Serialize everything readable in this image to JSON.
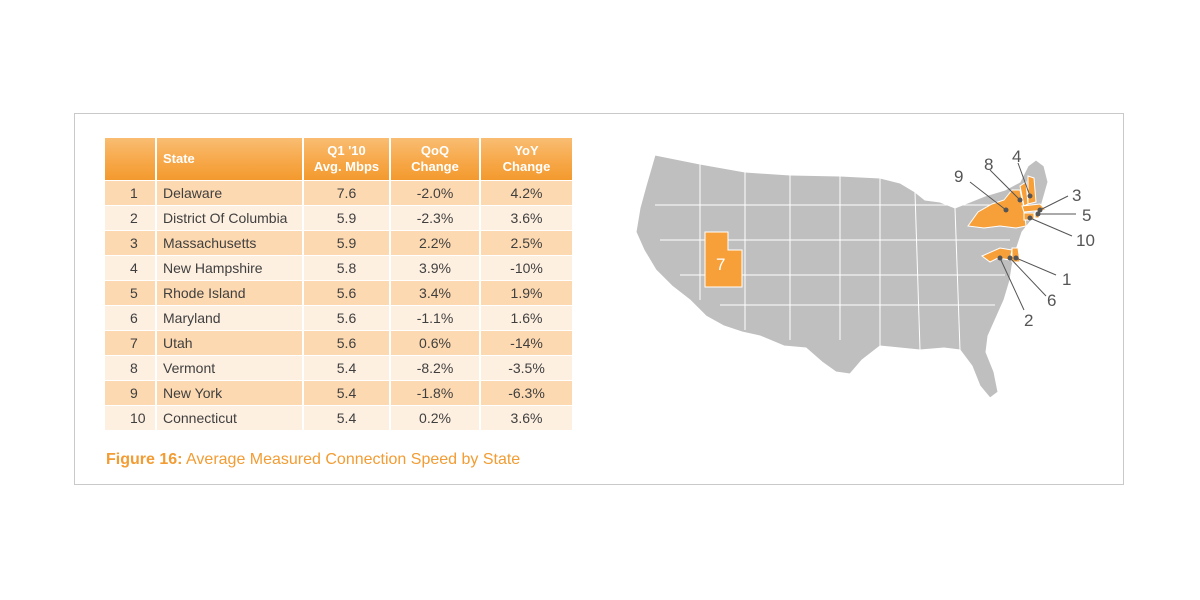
{
  "chart_data": {
    "type": "table",
    "title": "Average Measured Connection Speed by State",
    "figure_label": "Figure 16:",
    "columns": {
      "state": "State",
      "mbps_line1": "Q1 '10",
      "mbps_line2": "Avg. Mbps",
      "qoq_line1": "QoQ",
      "qoq_line2": "Change",
      "yoy_line1": "YoY",
      "yoy_line2": "Change"
    },
    "rows": [
      {
        "rank": "1",
        "state": "Delaware",
        "mbps": "7.6",
        "qoq": "-2.0%",
        "yoy": "4.2%"
      },
      {
        "rank": "2",
        "state": "District Of Columbia",
        "mbps": "5.9",
        "qoq": "-2.3%",
        "yoy": "3.6%"
      },
      {
        "rank": "3",
        "state": "Massachusetts",
        "mbps": "5.9",
        "qoq": "2.2%",
        "yoy": "2.5%"
      },
      {
        "rank": "4",
        "state": "New Hampshire",
        "mbps": "5.8",
        "qoq": "3.9%",
        "yoy": "-10%"
      },
      {
        "rank": "5",
        "state": "Rhode Island",
        "mbps": "5.6",
        "qoq": "3.4%",
        "yoy": "1.9%"
      },
      {
        "rank": "6",
        "state": "Maryland",
        "mbps": "5.6",
        "qoq": "-1.1%",
        "yoy": "1.6%"
      },
      {
        "rank": "7",
        "state": "Utah",
        "mbps": "5.6",
        "qoq": "0.6%",
        "yoy": "-14%"
      },
      {
        "rank": "8",
        "state": "Vermont",
        "mbps": "5.4",
        "qoq": "-8.2%",
        "yoy": "-3.5%"
      },
      {
        "rank": "9",
        "state": "New York",
        "mbps": "5.4",
        "qoq": "-1.8%",
        "yoy": "-6.3%"
      },
      {
        "rank": "10",
        "state": "Connecticut",
        "mbps": "5.4",
        "qoq": "0.2%",
        "yoy": "3.6%"
      }
    ],
    "map": {
      "base_color": "#bfbfbf",
      "highlight_color": "#f7a03a",
      "labels": [
        "1",
        "2",
        "3",
        "4",
        "5",
        "6",
        "7",
        "8",
        "9",
        "10"
      ]
    }
  },
  "colors": {
    "accent": "#f29c33",
    "header_gradient_top": "#f9bd72",
    "row_dark": "#fcd9b1",
    "row_light": "#fef0e1",
    "frame_border": "#c9c9c9"
  }
}
